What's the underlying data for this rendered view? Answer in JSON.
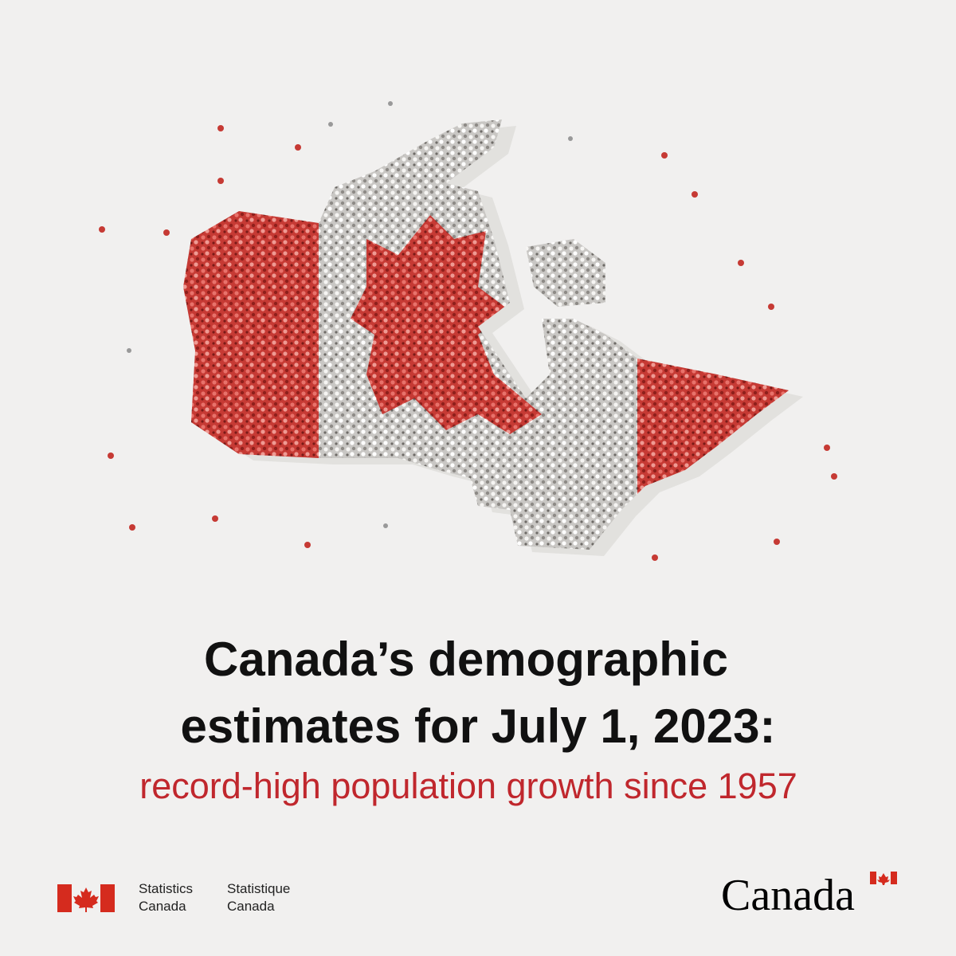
{
  "header": {
    "title_lines": [
      "Canada’s demographic",
      "estimates for July 1, 2023:"
    ],
    "subtitle": "record-high population growth since 1957"
  },
  "footer": {
    "logo": {
      "english": [
        "Statistics",
        "Canada"
      ],
      "french": [
        "Statistique",
        "Canada"
      ]
    },
    "wordmark": "Canada"
  }
}
